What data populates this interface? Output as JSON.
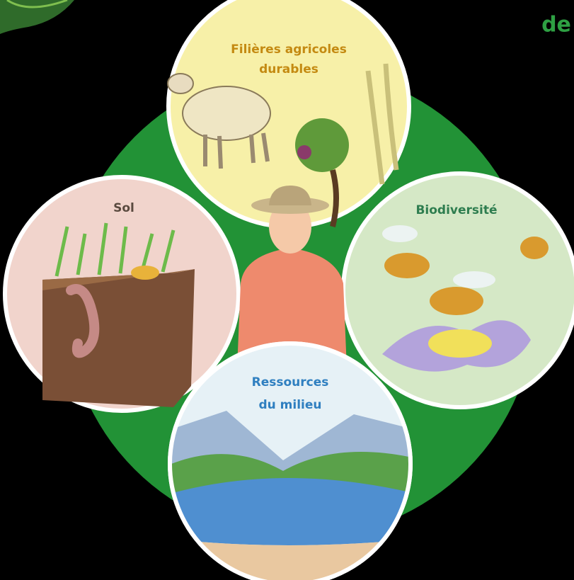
{
  "corner_text": "de",
  "circles": [
    {
      "label_lines": [
        "Filières agricoles",
        "durables"
      ]
    },
    {
      "label_lines": [
        "Sol"
      ]
    },
    {
      "label_lines": [
        "Biodiversité"
      ]
    },
    {
      "label_lines": [
        "Ressources",
        "du milieu"
      ]
    }
  ]
}
